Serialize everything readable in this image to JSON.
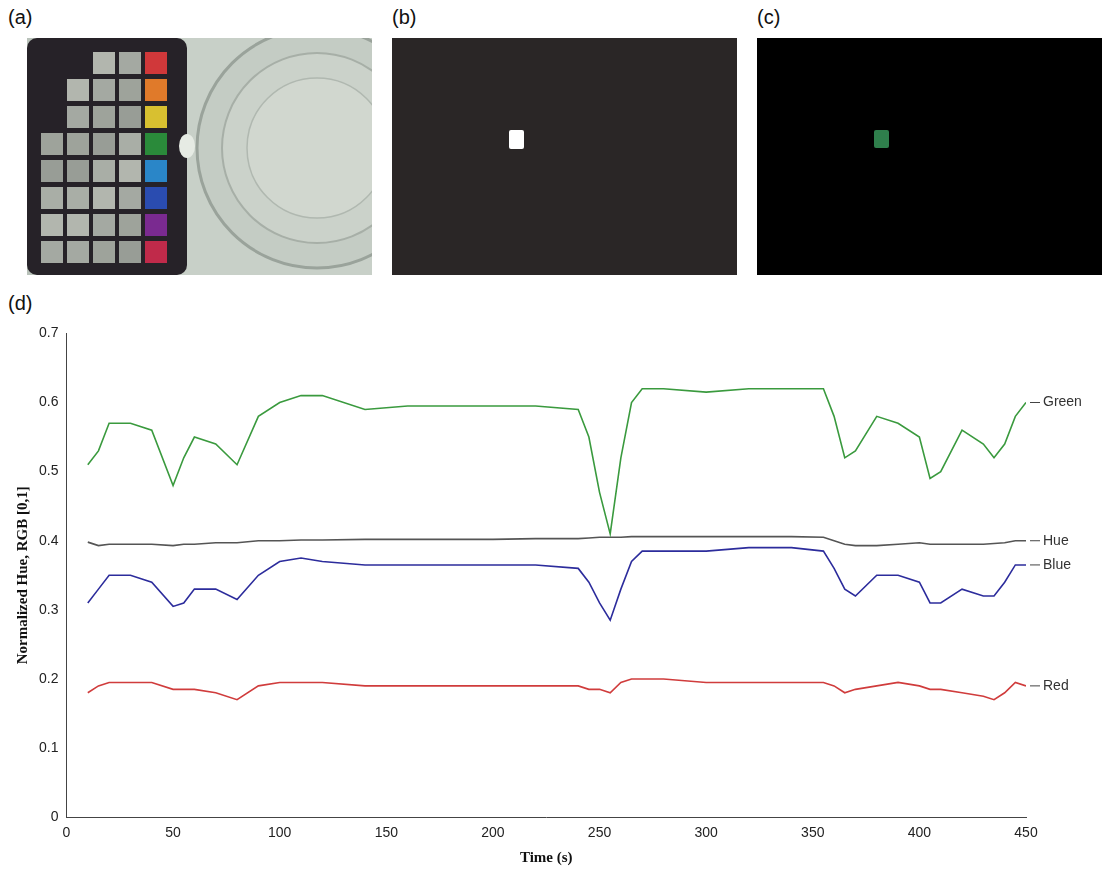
{
  "panels": [
    {
      "label": "(a)"
    },
    {
      "label": "(b)"
    },
    {
      "label": "(c)"
    }
  ],
  "chart_data": {
    "label": "(d)",
    "type": "line",
    "x_label": "Time (s)",
    "y_label": "Normalized Hue, RGB [0,1]",
    "xlim": [
      0,
      450
    ],
    "xticks": [
      0,
      50,
      100,
      150,
      200,
      250,
      300,
      350,
      400,
      450
    ],
    "ylim": [
      0,
      0.7
    ],
    "yticks": [
      0,
      0.1,
      0.2,
      0.3,
      0.4,
      0.5,
      0.6,
      0.7
    ],
    "grid": false,
    "x": [
      10,
      15,
      20,
      30,
      40,
      50,
      55,
      60,
      70,
      80,
      90,
      100,
      110,
      120,
      140,
      160,
      180,
      200,
      220,
      240,
      245,
      250,
      255,
      260,
      265,
      270,
      280,
      300,
      320,
      340,
      355,
      360,
      365,
      370,
      380,
      390,
      400,
      405,
      410,
      420,
      430,
      435,
      440,
      445,
      450
    ],
    "series": [
      {
        "name": "Green",
        "color": "#3a9a3e",
        "values": [
          0.51,
          0.53,
          0.57,
          0.57,
          0.56,
          0.48,
          0.52,
          0.55,
          0.54,
          0.51,
          0.58,
          0.6,
          0.61,
          0.61,
          0.59,
          0.595,
          0.595,
          0.595,
          0.595,
          0.59,
          0.55,
          0.47,
          0.41,
          0.52,
          0.6,
          0.62,
          0.62,
          0.615,
          0.62,
          0.62,
          0.62,
          0.58,
          0.52,
          0.53,
          0.58,
          0.57,
          0.55,
          0.49,
          0.5,
          0.56,
          0.54,
          0.52,
          0.54,
          0.58,
          0.6
        ]
      },
      {
        "name": "Hue",
        "color": "#555555",
        "values": [
          0.398,
          0.393,
          0.395,
          0.395,
          0.395,
          0.393,
          0.395,
          0.395,
          0.397,
          0.397,
          0.4,
          0.4,
          0.401,
          0.401,
          0.402,
          0.402,
          0.402,
          0.402,
          0.403,
          0.403,
          0.404,
          0.405,
          0.405,
          0.405,
          0.406,
          0.406,
          0.406,
          0.406,
          0.406,
          0.406,
          0.405,
          0.4,
          0.395,
          0.393,
          0.393,
          0.395,
          0.397,
          0.395,
          0.395,
          0.395,
          0.395,
          0.396,
          0.397,
          0.4,
          0.4
        ]
      },
      {
        "name": "Blue",
        "color": "#2c2c9c",
        "values": [
          0.31,
          0.33,
          0.35,
          0.35,
          0.34,
          0.305,
          0.31,
          0.33,
          0.33,
          0.315,
          0.35,
          0.37,
          0.375,
          0.37,
          0.365,
          0.365,
          0.365,
          0.365,
          0.365,
          0.36,
          0.34,
          0.31,
          0.285,
          0.33,
          0.37,
          0.385,
          0.385,
          0.385,
          0.39,
          0.39,
          0.385,
          0.36,
          0.33,
          0.32,
          0.35,
          0.35,
          0.34,
          0.31,
          0.31,
          0.33,
          0.32,
          0.32,
          0.34,
          0.365,
          0.365
        ]
      },
      {
        "name": "Red",
        "color": "#d03c3c",
        "values": [
          0.18,
          0.19,
          0.195,
          0.195,
          0.195,
          0.185,
          0.185,
          0.185,
          0.18,
          0.17,
          0.19,
          0.195,
          0.195,
          0.195,
          0.19,
          0.19,
          0.19,
          0.19,
          0.19,
          0.19,
          0.185,
          0.185,
          0.18,
          0.195,
          0.2,
          0.2,
          0.2,
          0.195,
          0.195,
          0.195,
          0.195,
          0.19,
          0.18,
          0.185,
          0.19,
          0.195,
          0.19,
          0.185,
          0.185,
          0.18,
          0.175,
          0.17,
          0.18,
          0.195,
          0.19
        ]
      }
    ]
  }
}
